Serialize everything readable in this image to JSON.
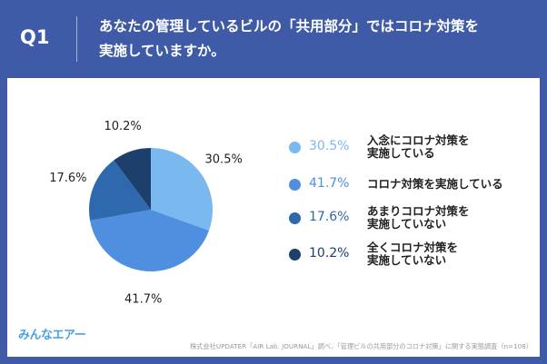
{
  "header": {
    "q_label": "Q1",
    "question_line1": "あなたの管理しているビルの「共用部分」ではコロナ対策を",
    "question_line2": "実施していますか。"
  },
  "chart_data": {
    "type": "pie",
    "slices": [
      {
        "label_line1": "入念にコロナ対策を",
        "label_line2": "実施している",
        "value": 30.5,
        "pct_text": "30.5%",
        "color": "#7ab8f0"
      },
      {
        "label_line1": "コロナ対策を実施している",
        "label_line2": "",
        "value": 41.7,
        "pct_text": "41.7%",
        "color": "#4e8fe0"
      },
      {
        "label_line1": "あまりコロナ対策を",
        "label_line2": "実施していない",
        "value": 17.6,
        "pct_text": "17.6%",
        "color": "#2e69ae"
      },
      {
        "label_line1": "全くコロナ対策を",
        "label_line2": "実施していない",
        "value": 10.2,
        "pct_text": "10.2%",
        "color": "#1c3f6c"
      }
    ],
    "start": "12 o'clock",
    "direction": "clockwise",
    "legend_position": "right"
  },
  "footer": {
    "logo": "みんなエアー",
    "source": "株式会社UPDATER「AIR Lab. JOURNAL」調べ、「管理ビルの共用部分のコロナ対策」に関する実態調査（n=108）"
  },
  "colors": {
    "background": "#3f5aa6",
    "card": "#ffffff",
    "pct_text_1": "#7ab8f0",
    "pct_text_2": "#4e8fe0",
    "pct_text_3": "#2e69ae",
    "pct_text_4": "#1c3f6c"
  }
}
